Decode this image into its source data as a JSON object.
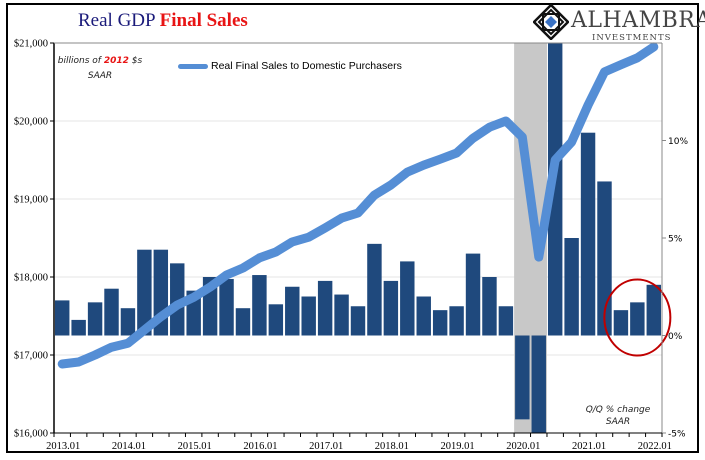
{
  "header": {
    "title_part1": "Real GDP",
    "title_part2": "Final Sales",
    "brand_name": "ALHAMBRA",
    "brand_sub": "INVESTMENTS"
  },
  "annotations": {
    "left_unit_prefix": "billions of",
    "left_unit_year": "2012",
    "left_unit_suffix": "$s",
    "left_unit_line2": "SAAR",
    "right_unit_line1": "Q/Q % change",
    "right_unit_line2": "SAAR"
  },
  "colors": {
    "bars": "#1f497d",
    "line": "#558ed5",
    "recession_shade": "#c8c8c8",
    "highlight_circle": "#c00000",
    "title_dark": "#1a1a7a",
    "title_red": "#e81414"
  },
  "chart_data": {
    "type": "bar+line",
    "title": "Real GDP Final Sales",
    "categories": [
      "2013Q1",
      "2013Q2",
      "2013Q3",
      "2013Q4",
      "2014Q1",
      "2014Q2",
      "2014Q3",
      "2014Q4",
      "2015Q1",
      "2015Q2",
      "2015Q3",
      "2015Q4",
      "2016Q1",
      "2016Q2",
      "2016Q3",
      "2016Q4",
      "2017Q1",
      "2017Q2",
      "2017Q3",
      "2017Q4",
      "2018Q1",
      "2018Q2",
      "2018Q3",
      "2018Q4",
      "2019Q1",
      "2019Q2",
      "2019Q3",
      "2019Q4",
      "2020Q1",
      "2020Q2",
      "2020Q3",
      "2020Q4",
      "2021Q1",
      "2021Q2",
      "2021Q3",
      "2021Q4",
      "2022Q1"
    ],
    "x_tick_labels": [
      "2013.01",
      "2014.01",
      "2015.01",
      "2016.01",
      "2017.01",
      "2018.01",
      "2019.01",
      "2020.01",
      "2021.01",
      "2022.01"
    ],
    "series": [
      {
        "name": "Real Final Sales to Domestic Purchasers",
        "type": "line",
        "axis": "left",
        "values": [
          16885,
          16910,
          17000,
          17100,
          17150,
          17320,
          17490,
          17640,
          17740,
          17870,
          18025,
          18115,
          18245,
          18320,
          18450,
          18510,
          18630,
          18755,
          18820,
          19050,
          19180,
          19345,
          19435,
          19510,
          19590,
          19780,
          19920,
          20000,
          19795,
          18255,
          19500,
          19730,
          20205,
          20630,
          20720,
          20810,
          20950
        ]
      },
      {
        "name": "Q/Q % change SAAR",
        "type": "bar",
        "axis": "right",
        "values": [
          1.8,
          0.8,
          1.7,
          2.4,
          1.4,
          4.4,
          4.4,
          3.7,
          2.3,
          3.0,
          2.9,
          1.4,
          3.1,
          1.6,
          2.5,
          2.0,
          2.8,
          2.1,
          1.5,
          4.7,
          2.8,
          3.8,
          2.0,
          1.3,
          1.5,
          4.2,
          3.0,
          1.5,
          -4.3,
          -30.0,
          30.0,
          5.0,
          10.4,
          7.9,
          1.3,
          1.7,
          2.6
        ],
        "note": "2020Q2 and 2020Q3 bars are clipped by the axis range"
      }
    ],
    "left_axis": {
      "label": "billions of 2012 $s SAAR",
      "ylim": [
        16000,
        21000
      ],
      "ticks": [
        "$16,000",
        "$17,000",
        "$18,000",
        "$19,000",
        "$20,000",
        "$21,000"
      ],
      "tick_values": [
        16000,
        17000,
        18000,
        19000,
        20000,
        21000
      ]
    },
    "right_axis": {
      "label": "Q/Q % change SAAR",
      "ylim": [
        -5,
        15
      ],
      "ticks": [
        "-5%",
        "0%",
        "5%",
        "10%"
      ],
      "tick_values": [
        -5,
        0,
        5,
        10
      ]
    },
    "recession_shading": {
      "from": "2020Q1",
      "to": "2020Q2"
    },
    "highlight": {
      "categories": [
        "2021Q3",
        "2021Q4",
        "2022Q1"
      ],
      "shape": "circle"
    },
    "grid": true,
    "legend": {
      "entries": [
        "Real Final Sales to Domestic Purchasers"
      ],
      "placement": "top-left"
    }
  }
}
